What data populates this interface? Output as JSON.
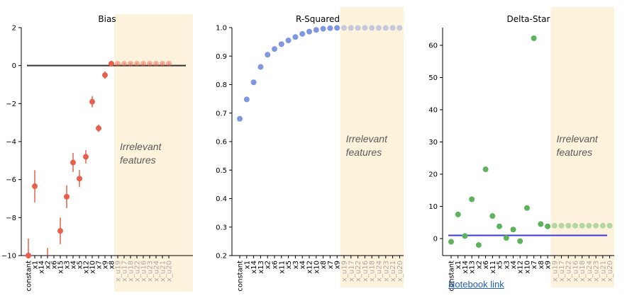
{
  "chart_data": [
    {
      "type": "scatter",
      "title": "Bias",
      "ylim": [
        -10,
        2
      ],
      "yticks": [
        2,
        0,
        -2,
        -4,
        -6,
        -8,
        -10
      ],
      "categories": [
        "constant",
        "x1",
        "x14",
        "x2",
        "x6",
        "x15",
        "x3",
        "x4",
        "x5",
        "x12",
        "x10",
        "x7",
        "x9",
        "x8",
        "x_u19",
        "x_u17",
        "x_u18",
        "x_u22",
        "x_u16",
        "x_u23",
        "x_u24",
        "x_u21",
        "x_u20"
      ],
      "values": [
        -10,
        null,
        null,
        null,
        null,
        -8.7,
        -6.9,
        -5.1,
        -5.95,
        -4.8,
        -1.9,
        -3.3,
        -0.5,
        0.1,
        0.1,
        0.1,
        0.1,
        0.1,
        0.1,
        0.1,
        0.1,
        0.1,
        0.1
      ],
      "error": [
        0.9,
        null,
        null,
        null,
        null,
        0.7,
        0.6,
        0.5,
        0.45,
        0.35,
        0.3,
        0.2,
        0.2,
        0.15,
        0.05,
        0.05,
        0.05,
        0.05,
        0.05,
        0.05,
        0.05,
        0.05,
        0.05
      ],
      "extra_points": [
        {
          "cat_index": 1,
          "value": -6.35,
          "error": 0.85
        }
      ],
      "clipped_errorbars": [
        {
          "cat_index": 3,
          "top": -9.6
        }
      ],
      "reference_line": {
        "value": 0,
        "color": "#333333"
      },
      "point_color": "#e8604c",
      "highlight_start_index": 14,
      "highlight_color": "#fdf2dc",
      "annotation": [
        "Irrelevant",
        "features"
      ]
    },
    {
      "type": "scatter",
      "title": "R-Squared",
      "ylim": [
        0.2,
        1.0
      ],
      "yticks": [
        1.0,
        0.9,
        0.8,
        0.7,
        0.6,
        0.5,
        0.4,
        0.3,
        0.2
      ],
      "categories": [
        "constant",
        "x1",
        "x14",
        "x13",
        "x2",
        "x6",
        "x11",
        "x5",
        "x3",
        "x4",
        "x12",
        "x10",
        "x8",
        "x7",
        "x9",
        "x_u19",
        "x_u17",
        "x_u22",
        "x_u16",
        "x_u18",
        "x_u24",
        "x_u23",
        "x_u21",
        "x_u20"
      ],
      "values": [
        0.68,
        0.748,
        0.808,
        0.862,
        0.905,
        0.925,
        0.942,
        0.955,
        0.967,
        0.978,
        0.986,
        0.992,
        0.996,
        0.998,
        0.999,
        0.999,
        0.999,
        0.999,
        0.999,
        0.999,
        0.999,
        0.999,
        0.999,
        0.999
      ],
      "point_color": "#7f96e0",
      "highlight_start_index": 15,
      "highlight_color": "#fdf2dc",
      "annotation": [
        "Irrelevant",
        "features"
      ]
    },
    {
      "type": "scatter",
      "title": "Delta-Star",
      "ylim": [
        -3,
        65
      ],
      "yticks": [
        60,
        50,
        40,
        30,
        20,
        10,
        0
      ],
      "categories": [
        "constant",
        "x1",
        "x14",
        "x13",
        "x2",
        "x6",
        "x11",
        "x5",
        "x3",
        "x4",
        "x12",
        "x10",
        "x7",
        "x8",
        "x9",
        "x_u19",
        "x_u17",
        "x_u22",
        "x_u16",
        "x_u18",
        "x_u24",
        "x_u23",
        "x_u21",
        "x_u20"
      ],
      "values": [
        -1,
        7.5,
        0.8,
        12.2,
        -2,
        21.5,
        7,
        3.8,
        0.2,
        2.8,
        -0.8,
        9.5,
        62.2,
        4.5,
        3.8,
        4,
        4,
        4,
        4,
        4,
        4,
        4,
        4,
        4
      ],
      "reference_line": {
        "value": 1,
        "color": "#3a3adc"
      },
      "point_color": "#5cb35c",
      "highlight_start_index": 15,
      "highlight_color": "#fdf2dc",
      "annotation": [
        "Irrelevant",
        "features"
      ]
    }
  ],
  "notebook_link_text": "Notebook link"
}
